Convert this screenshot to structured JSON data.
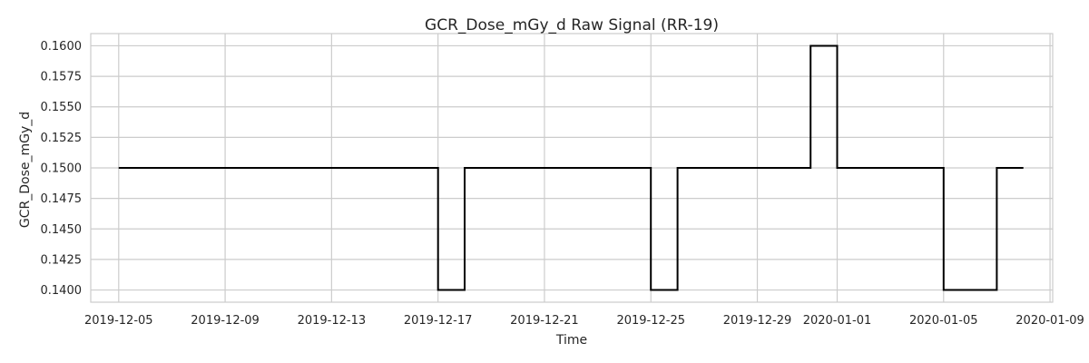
{
  "chart_data": {
    "type": "line",
    "drawstyle": "steps-post",
    "title": "GCR_Dose_mGy_d Raw Signal (RR-19)",
    "xlabel": "Time",
    "ylabel": "GCR_Dose_mGy_d",
    "ylim": [
      0.139,
      0.161
    ],
    "xlim": [
      "2019-12-04",
      "2020-01-09"
    ],
    "grid": true,
    "y_ticks": [
      "0.1400",
      "0.1425",
      "0.1450",
      "0.1475",
      "0.1500",
      "0.1525",
      "0.1550",
      "0.1575",
      "0.1600"
    ],
    "x_ticks": [
      "2019-12-05",
      "2019-12-09",
      "2019-12-13",
      "2019-12-17",
      "2019-12-21",
      "2019-12-25",
      "2019-12-29",
      "2020-01-01",
      "2020-01-05",
      "2020-01-09"
    ],
    "series": [
      {
        "name": "GCR_Dose_mGy_d",
        "color": "#000000",
        "x": [
          "2019-12-05",
          "2019-12-17",
          "2019-12-18",
          "2019-12-25",
          "2019-12-26",
          "2019-12-31",
          "2020-01-01",
          "2020-01-05",
          "2020-01-06",
          "2020-01-07",
          "2020-01-08"
        ],
        "values": [
          0.15,
          0.14,
          0.15,
          0.14,
          0.15,
          0.16,
          0.15,
          0.14,
          0.14,
          0.15,
          0.15
        ]
      }
    ]
  }
}
